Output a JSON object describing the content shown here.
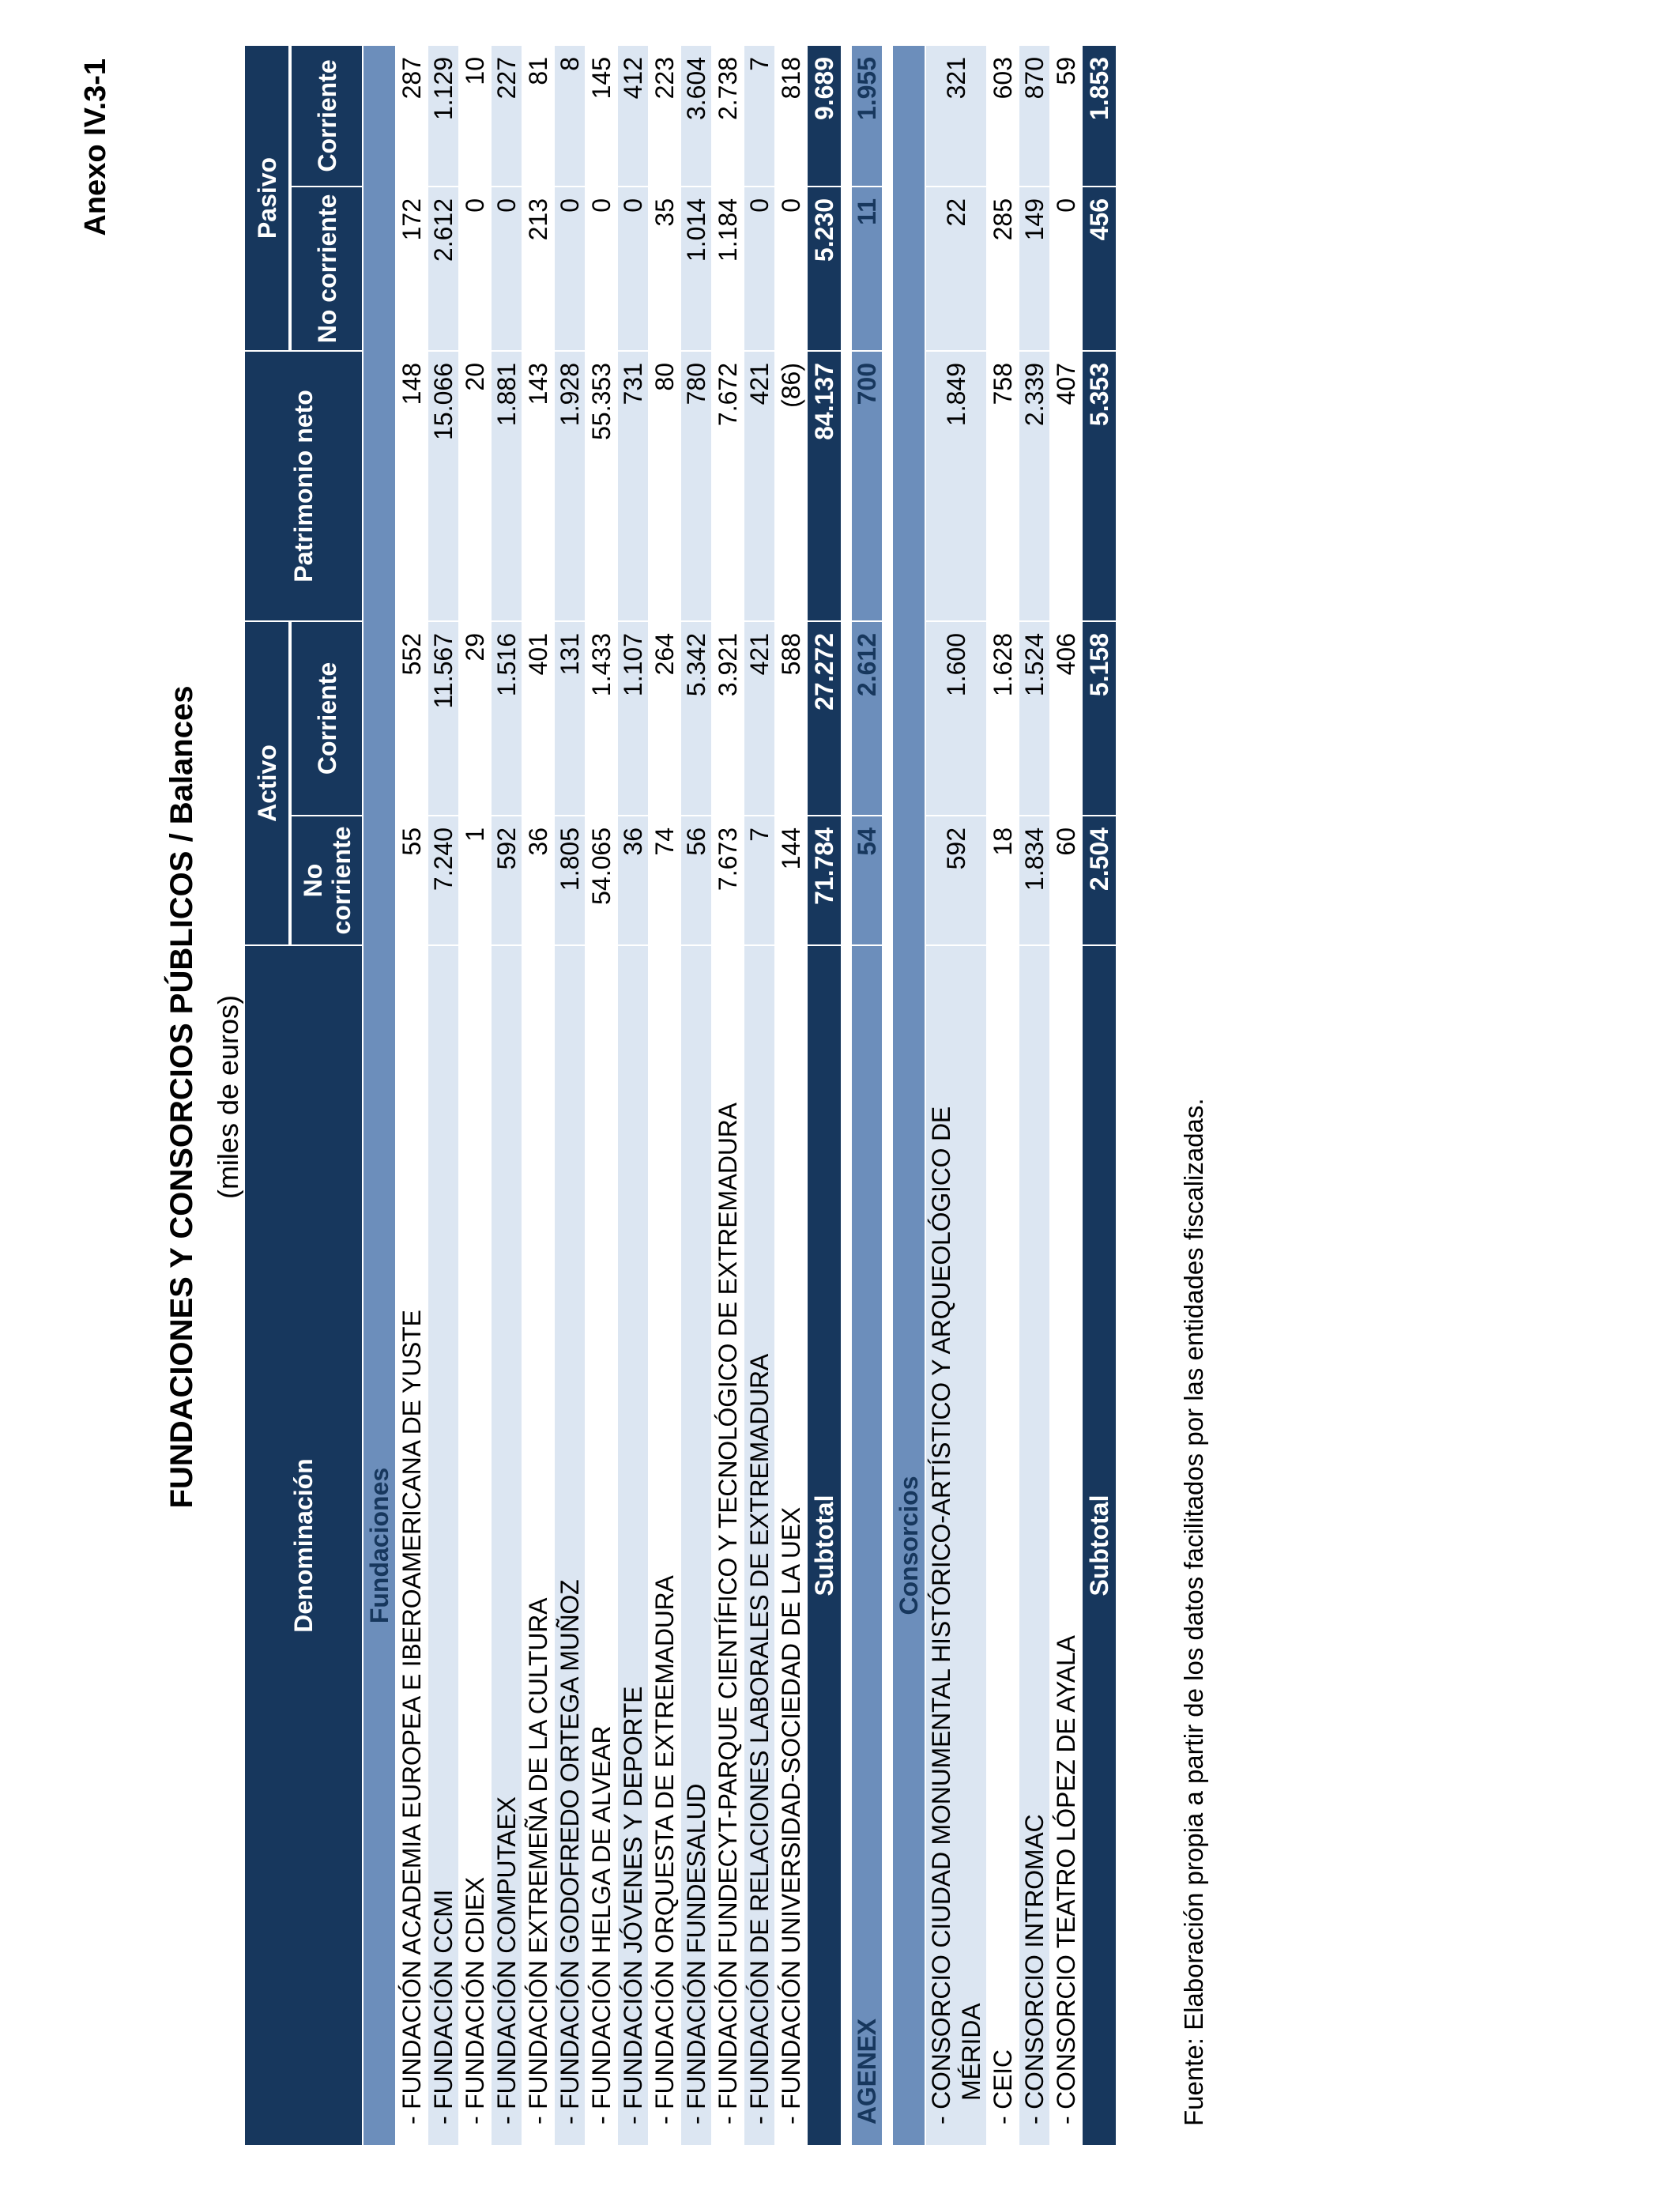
{
  "page": {
    "annex_label": "Anexo IV.3-1",
    "title": "FUNDACIONES Y CONSORCIOS PÚBLICOS  /  Balances",
    "subtitle": "(miles de euros)",
    "source_note": "Fuente: Elaboración propia a partir de los datos facilitados por las entidades fiscalizadas."
  },
  "colors": {
    "navy": "#17375d",
    "steel": "#6c8ebb",
    "lightblue": "#dce6f2"
  },
  "table": {
    "headers": {
      "denominacion": "Denominación",
      "activo": "Activo",
      "patrimonio_neto": "Patrimonio neto",
      "pasivo": "Pasivo",
      "no_corriente": "No corriente",
      "corriente": "Corriente"
    },
    "value_columns_order": [
      "Activo No corriente",
      "Activo Corriente",
      "Patrimonio neto",
      "Pasivo No corriente",
      "Pasivo Corriente"
    ],
    "rows": [
      {
        "type": "section",
        "label": "Fundaciones",
        "first_row_shade": "white"
      },
      {
        "type": "data",
        "name": "FUNDACIÓN ACADEMIA EUROPEA E IBEROAMERICANA DE YUSTE",
        "values": [
          "55",
          "552",
          "148",
          "172",
          "287"
        ]
      },
      {
        "type": "data",
        "name": "FUNDACIÓN CCMI",
        "values": [
          "7.240",
          "11.567",
          "15.066",
          "2.612",
          "1.129"
        ]
      },
      {
        "type": "data",
        "name": "FUNDACIÓN CDIEX",
        "values": [
          "1",
          "29",
          "20",
          "0",
          "10"
        ]
      },
      {
        "type": "data",
        "name": "FUNDACIÓN COMPUTAEX",
        "values": [
          "592",
          "1.516",
          "1.881",
          "0",
          "227"
        ]
      },
      {
        "type": "data",
        "name": "FUNDACIÓN EXTREMEÑA DE LA CULTURA",
        "values": [
          "36",
          "401",
          "143",
          "213",
          "81"
        ]
      },
      {
        "type": "data",
        "name": "FUNDACIÓN GODOFREDO ORTEGA MUÑOZ",
        "values": [
          "1.805",
          "131",
          "1.928",
          "0",
          "8"
        ]
      },
      {
        "type": "data",
        "name": "FUNDACIÓN HELGA DE ALVEAR",
        "values": [
          "54.065",
          "1.433",
          "55.353",
          "0",
          "145"
        ]
      },
      {
        "type": "data",
        "name": "FUNDACIÓN JÓVENES Y DEPORTE",
        "values": [
          "36",
          "1.107",
          "731",
          "0",
          "412"
        ]
      },
      {
        "type": "data",
        "name": "FUNDACIÓN ORQUESTA DE EXTREMADURA",
        "values": [
          "74",
          "264",
          "80",
          "35",
          "223"
        ]
      },
      {
        "type": "data",
        "name": "FUNDACIÓN FUNDESALUD",
        "values": [
          "56",
          "5.342",
          "780",
          "1.014",
          "3.604"
        ]
      },
      {
        "type": "data",
        "name": "FUNDACIÓN FUNDECYT-PARQUE CIENTÍFICO Y TECNOLÓGICO DE EXTREMADURA",
        "values": [
          "7.673",
          "3.921",
          "7.672",
          "1.184",
          "2.738"
        ]
      },
      {
        "type": "data",
        "name": "FUNDACIÓN DE RELACIONES LABORALES DE EXTREMADURA",
        "values": [
          "7",
          "421",
          "421",
          "0",
          "7"
        ]
      },
      {
        "type": "data",
        "name": "FUNDACIÓN UNIVERSIDAD-SOCIEDAD DE LA UEX",
        "values": [
          "144",
          "588",
          "(86)",
          "0",
          "818"
        ]
      },
      {
        "type": "subtotal",
        "label": "Subtotal",
        "values": [
          "71.784",
          "27.272",
          "84.137",
          "5.230",
          "9.689"
        ]
      },
      {
        "type": "gap"
      },
      {
        "type": "standalone",
        "name": "AGENEX",
        "values": [
          "54",
          "2.612",
          "700",
          "11",
          "1.955"
        ]
      },
      {
        "type": "gap"
      },
      {
        "type": "section",
        "label": "Consorcios",
        "first_row_shade": "blue"
      },
      {
        "type": "data",
        "name": "CONSORCIO CIUDAD MONUMENTAL HISTÓRICO-ARTÍSTICO Y ARQUEOLÓGICO DE",
        "name2": "MÉRIDA",
        "values": [
          "592",
          "1.600",
          "1.849",
          "22",
          "321"
        ]
      },
      {
        "type": "data",
        "name": "CEIC",
        "values": [
          "18",
          "1.628",
          "758",
          "285",
          "603"
        ]
      },
      {
        "type": "data",
        "name": "CONSORCIO INTROMAC",
        "values": [
          "1.834",
          "1.524",
          "2.339",
          "149",
          "870"
        ]
      },
      {
        "type": "data",
        "name": "CONSORCIO TEATRO LÓPEZ DE AYALA",
        "values": [
          "60",
          "406",
          "407",
          "0",
          "59"
        ]
      },
      {
        "type": "subtotal",
        "label": "Subtotal",
        "values": [
          "2.504",
          "5.158",
          "5.353",
          "456",
          "1.853"
        ]
      }
    ]
  }
}
